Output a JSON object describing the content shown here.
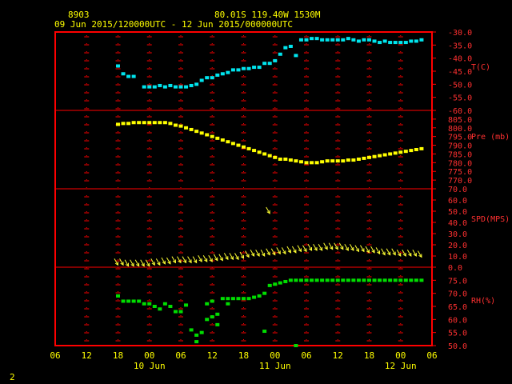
{
  "header": {
    "station": "8903",
    "location": "80.01S   119.40W   1530M",
    "time_range": "09 Jun 2015/120000UTC - 12 Jun 2015/000000UTC",
    "page_number": "2"
  },
  "colors": {
    "background": "#000000",
    "frame": "#ff0000",
    "text": "#ffff00",
    "temperature": "#00e5ee",
    "pressure": "#ffff00",
    "wind": "#ffff33",
    "rh": "#00dd00"
  },
  "x_axis": {
    "hour_labels": [
      "06",
      "12",
      "18",
      "00",
      "06",
      "12",
      "18",
      "00",
      "06",
      "12",
      "18",
      "00",
      "06"
    ],
    "day_labels": [
      "10 Jun",
      "11 Jun",
      "12 Jun"
    ]
  },
  "chart_data": [
    {
      "type": "scatter",
      "panel": "temperature",
      "ylabel": "T(C)",
      "ylim": [
        -60,
        -30
      ],
      "yticks": [
        "-30.0",
        "-35.0",
        "-40.0",
        "-45.0",
        "-50.0",
        "-55.0",
        "-60.0"
      ],
      "x_unit": "hours since 09 Jun 2015 06UTC",
      "x": [
        12,
        13,
        14,
        15,
        17,
        18,
        19,
        20,
        21,
        22,
        23,
        24,
        25,
        26,
        27,
        28,
        29,
        30,
        31,
        32,
        33,
        34,
        35,
        36,
        37,
        38,
        39,
        40,
        41,
        42,
        43,
        44,
        45,
        46,
        47,
        48,
        49,
        50,
        51,
        52,
        53,
        54,
        55,
        56,
        57,
        58,
        59,
        60,
        61,
        62,
        63,
        64,
        65,
        66,
        67,
        68,
        69,
        70
      ],
      "values": [
        -43,
        -46,
        -47,
        -47,
        -51,
        -51,
        -51,
        -50.5,
        -51,
        -50.5,
        -51,
        -51,
        -51,
        -50.5,
        -50,
        -48.5,
        -47.5,
        -47.5,
        -46.5,
        -46,
        -45.5,
        -44.5,
        -44.5,
        -44,
        -44,
        -43.5,
        -43.5,
        -42,
        -42,
        -41,
        -38.5,
        -36,
        -35.5,
        -39,
        -33,
        -33,
        -32.5,
        -32.5,
        -33,
        -33,
        -33,
        -33,
        -33,
        -32.5,
        -33,
        -33.5,
        -33,
        -33,
        -33.5,
        -34,
        -33.5,
        -34,
        -34,
        -34,
        -34,
        -33.5,
        -33.5,
        -33
      ]
    },
    {
      "type": "scatter",
      "panel": "pressure",
      "ylabel": "Pre (mb)",
      "ylim": [
        765,
        810
      ],
      "yticks": [
        "805.0",
        "800.0",
        "795.0",
        "790.0",
        "785.0",
        "780.0",
        "775.0",
        "770.0"
      ],
      "x_unit": "hours since 09 Jun 2015 06UTC",
      "x": [
        12,
        13,
        14,
        15,
        16,
        17,
        18,
        19,
        20,
        21,
        22,
        23,
        24,
        25,
        26,
        27,
        28,
        29,
        30,
        31,
        32,
        33,
        34,
        35,
        36,
        37,
        38,
        39,
        40,
        41,
        42,
        43,
        44,
        45,
        46,
        47,
        48,
        49,
        50,
        51,
        52,
        53,
        54,
        55,
        56,
        57,
        58,
        59,
        60,
        61,
        62,
        63,
        64,
        65,
        66,
        67,
        68,
        69,
        70
      ],
      "values": [
        802,
        802.5,
        802.5,
        803,
        803,
        803,
        803,
        803,
        803,
        803,
        802.5,
        801.5,
        801,
        800,
        799,
        798,
        797,
        796,
        795,
        794,
        793,
        792,
        791,
        790,
        789,
        788,
        787,
        786,
        785,
        784,
        783,
        782,
        782,
        781.5,
        781,
        780.5,
        780,
        780,
        780,
        780.5,
        781,
        781,
        781,
        781,
        781.5,
        781.5,
        782,
        782.5,
        783,
        783.5,
        784,
        784.5,
        785,
        785.5,
        786,
        786.5,
        787,
        787.5,
        788
      ]
    },
    {
      "type": "scatter",
      "panel": "wind",
      "ylabel": "SPD(MPS)",
      "ylim": [
        0,
        70
      ],
      "yticks": [
        "70.0",
        "60.0",
        "50.0",
        "40.0",
        "30.0",
        "20.0",
        "10.0",
        "0.0"
      ],
      "x_unit": "hours since 09 Jun 2015 06UTC",
      "x": [
        12,
        13,
        14,
        15,
        16,
        17,
        18,
        19,
        20,
        21,
        22,
        23,
        24,
        25,
        26,
        27,
        28,
        29,
        30,
        31,
        32,
        33,
        34,
        35,
        36,
        37,
        38,
        39,
        40,
        41,
        42,
        43,
        44,
        45,
        46,
        47,
        48,
        49,
        50,
        51,
        52,
        53,
        54,
        55,
        56,
        57,
        58,
        59,
        60,
        61,
        62,
        63,
        64,
        65,
        66,
        67,
        68,
        69,
        70,
        41
      ],
      "values": [
        2,
        2,
        1,
        1,
        1,
        1,
        1,
        2,
        2,
        3,
        3,
        4,
        4,
        4,
        4,
        4,
        5,
        5,
        5,
        6,
        6,
        7,
        7,
        7,
        8,
        9,
        10,
        10,
        10,
        11,
        11,
        12,
        12,
        13,
        13,
        14,
        14,
        15,
        15,
        15,
        16,
        16,
        16,
        16,
        15,
        15,
        14,
        14,
        13,
        13,
        12,
        11,
        11,
        11,
        10,
        10,
        10,
        10,
        9,
        48
      ],
      "direction_deg": [
        330,
        330,
        330,
        330,
        330,
        330,
        330,
        330,
        330,
        330,
        330,
        330,
        330,
        330,
        330,
        330,
        330,
        330,
        330,
        330,
        330,
        330,
        330,
        330,
        330,
        330,
        330,
        330,
        330,
        330,
        330,
        330,
        330,
        330,
        330,
        330,
        330,
        330,
        330,
        330,
        330,
        330,
        330,
        330,
        330,
        330,
        330,
        330,
        330,
        330,
        330,
        330,
        330,
        330,
        330,
        330,
        330,
        330,
        330,
        330
      ]
    },
    {
      "type": "scatter",
      "panel": "relative_humidity",
      "ylabel": "RH(%)",
      "ylim": [
        50,
        80
      ],
      "yticks": [
        "75.0",
        "70.0",
        "65.0",
        "60.0",
        "55.0",
        "50.0"
      ],
      "x_unit": "hours since 09 Jun 2015 06UTC",
      "x": [
        12,
        13,
        14,
        15,
        16,
        17,
        18,
        19,
        20,
        21,
        22,
        23,
        24,
        25,
        26,
        27,
        28,
        29,
        30,
        31,
        32,
        33,
        34,
        35,
        36,
        37,
        38,
        39,
        40,
        41,
        42,
        43,
        44,
        45,
        46,
        47,
        48,
        49,
        50,
        51,
        52,
        53,
        54,
        55,
        56,
        57,
        58,
        59,
        60,
        61,
        62,
        63,
        64,
        65,
        66,
        67,
        68,
        69,
        70,
        40,
        46,
        33,
        29,
        27,
        31,
        30
      ],
      "values": [
        69,
        67,
        67,
        67,
        67,
        66,
        66,
        65,
        64,
        66,
        65,
        63,
        63,
        65.5,
        56,
        51.5,
        55,
        66,
        67,
        58,
        68,
        68,
        68,
        68,
        68,
        68,
        68.5,
        69,
        70,
        73,
        73.5,
        74,
        74.5,
        75,
        75,
        75,
        75,
        75,
        75,
        75,
        75,
        75,
        75,
        75,
        75,
        75,
        75,
        75,
        75,
        75,
        75,
        75,
        75,
        75,
        75,
        75,
        75,
        75,
        75,
        55.5,
        50,
        66,
        60,
        54,
        62,
        61
      ]
    }
  ]
}
